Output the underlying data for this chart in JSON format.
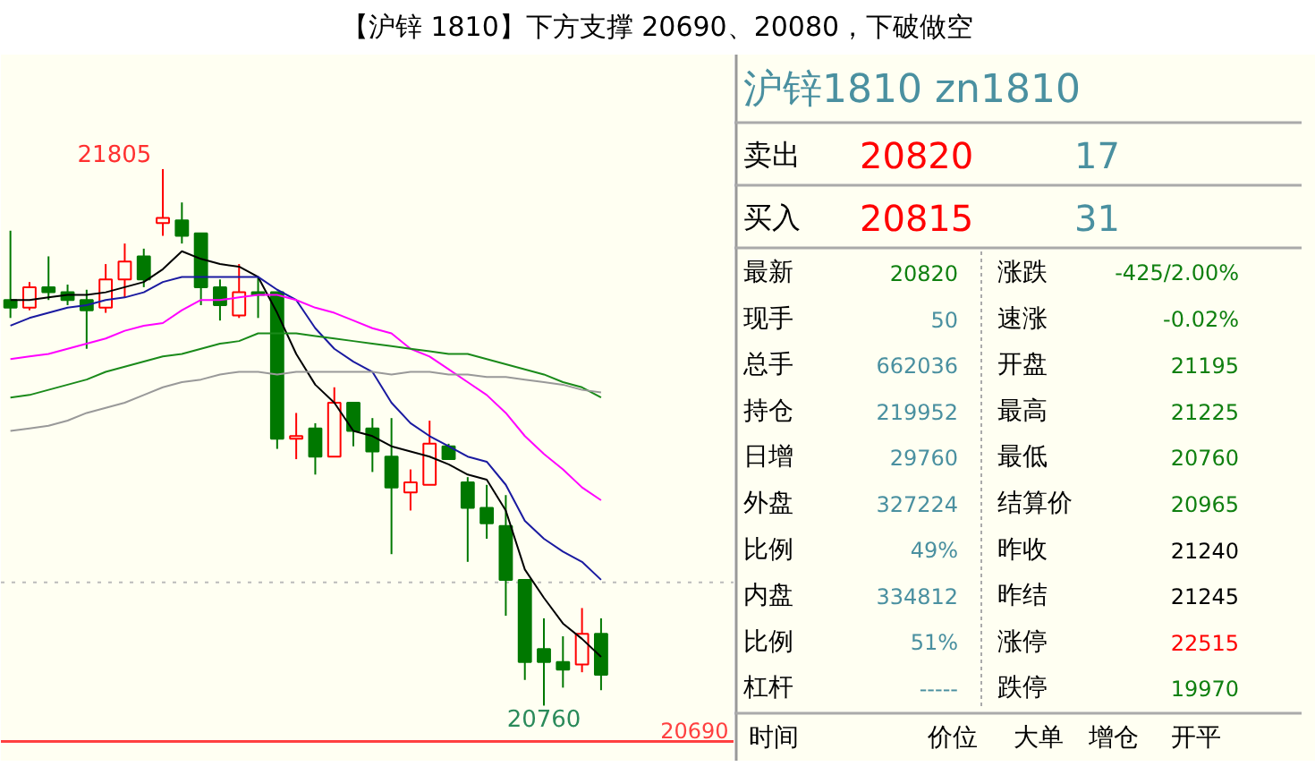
{
  "chart_data": [
    {
      "type": "candlestick",
      "title": "【沪锌 1810】下方支撑 20690、20080，下破做空",
      "categories": [
        null,
        null,
        null,
        null,
        null,
        null,
        null,
        null,
        null,
        null,
        null,
        null,
        null,
        null,
        null,
        null,
        null,
        null,
        null,
        null,
        null,
        null,
        null,
        null,
        null,
        null,
        null,
        null,
        null,
        null,
        null,
        null
      ],
      "ohlc": [
        [
          21550,
          21685,
          21515,
          21535
        ],
        [
          21535,
          21585,
          21530,
          21575
        ],
        [
          21575,
          21635,
          21550,
          21565
        ],
        [
          21565,
          21580,
          21540,
          21550
        ],
        [
          21550,
          21570,
          21455,
          21530
        ],
        [
          21535,
          21620,
          21525,
          21590
        ],
        [
          21590,
          21660,
          21555,
          21625
        ],
        [
          21635,
          21650,
          21575,
          21590
        ],
        [
          21700,
          21805,
          21675,
          21710
        ],
        [
          21705,
          21740,
          21660,
          21675
        ],
        [
          21680,
          21680,
          21540,
          21575
        ],
        [
          21575,
          21590,
          21510,
          21540
        ],
        [
          21520,
          21620,
          21515,
          21565
        ],
        [
          21565,
          21595,
          21515,
          21560
        ],
        [
          21565,
          21565,
          21260,
          21280
        ],
        [
          21280,
          21330,
          21240,
          21285
        ],
        [
          21300,
          21310,
          21210,
          21245
        ],
        [
          21245,
          21380,
          21245,
          21350
        ],
        [
          21350,
          21350,
          21265,
          21295
        ],
        [
          21300,
          21320,
          21215,
          21255
        ],
        [
          21245,
          21320,
          21055,
          21185
        ],
        [
          21175,
          21220,
          21140,
          21195
        ],
        [
          21190,
          21315,
          21190,
          21270
        ],
        [
          21265,
          21270,
          21240,
          21240
        ],
        [
          21195,
          21205,
          21040,
          21145
        ],
        [
          21145,
          21190,
          21085,
          21115
        ],
        [
          21110,
          21170,
          20935,
          21005
        ],
        [
          21005,
          21005,
          20810,
          20845
        ],
        [
          20870,
          20930,
          20760,
          20845
        ],
        [
          20845,
          20895,
          20795,
          20830
        ],
        [
          20840,
          20950,
          20825,
          20900
        ],
        [
          20900,
          20930,
          20790,
          20820
        ]
      ],
      "series": [
        {
          "type": "line",
          "color": "#000000",
          "values": [
            21550,
            21550,
            21555,
            21560,
            21560,
            21565,
            21575,
            21585,
            21610,
            21645,
            21630,
            21620,
            21615,
            21595,
            21525,
            21445,
            21385,
            21350,
            21295,
            21285,
            21265,
            21255,
            21245,
            21230,
            21210,
            21200,
            21140,
            21025,
            20970,
            20920,
            20890,
            20855
          ]
        },
        {
          "type": "line",
          "color": "#1a1aa0",
          "values": [
            21500,
            21515,
            21525,
            21535,
            21540,
            21550,
            21555,
            21565,
            21585,
            21595,
            21595,
            21595,
            21595,
            21595,
            21570,
            21550,
            21495,
            21455,
            21430,
            21410,
            21350,
            21310,
            21285,
            21265,
            21245,
            21235,
            21190,
            21120,
            21085,
            21060,
            21040,
            21005
          ]
        },
        {
          "type": "line",
          "color": "#ff00ff",
          "values": [
            21435,
            21440,
            21445,
            21455,
            21465,
            21475,
            21490,
            21500,
            21505,
            21530,
            21550,
            21550,
            21555,
            21560,
            21560,
            21550,
            21535,
            21525,
            21510,
            21495,
            21485,
            21455,
            21440,
            21415,
            21390,
            21365,
            21330,
            21285,
            21250,
            21220,
            21185,
            21160
          ]
        },
        {
          "type": "line",
          "color": "#1a8a1a",
          "values": [
            21360,
            21365,
            21375,
            21385,
            21395,
            21410,
            21420,
            21430,
            21440,
            21445,
            21455,
            21465,
            21470,
            21485,
            21485,
            21485,
            21480,
            21475,
            21470,
            21465,
            21460,
            21455,
            21450,
            21445,
            21445,
            21435,
            21425,
            21415,
            21405,
            21390,
            21380,
            21360
          ]
        },
        {
          "type": "line",
          "color": "#999999",
          "values": [
            21295,
            21300,
            21305,
            21315,
            21330,
            21340,
            21350,
            21365,
            21380,
            21390,
            21395,
            21405,
            21410,
            21410,
            21405,
            21410,
            21410,
            21410,
            21410,
            21410,
            21405,
            21410,
            21410,
            21405,
            21405,
            21400,
            21400,
            21395,
            21390,
            21385,
            21375,
            21370
          ]
        }
      ],
      "ref_lines": [
        {
          "axis": "y",
          "value": 20690,
          "label": "20690",
          "color": "#ff4040"
        },
        {
          "axis": "y",
          "value": 21000,
          "color": "#bbbbbb",
          "line_style": "dotted"
        }
      ],
      "annotations": [
        "21805",
        "20760"
      ]
    },
    {
      "type": "other",
      "title": "沪锌1810  zn1810",
      "annotations": [
        "卖出",
        "20820",
        "17",
        "买入",
        "20815",
        "31",
        "最新",
        "20820",
        "涨跌",
        "-425/2.00%",
        "现手",
        "50",
        "速涨",
        "-0.02%",
        "总手",
        "662036",
        "开盘",
        "21195",
        "持仓",
        "219952",
        "最高",
        "21225",
        "日增",
        "29760",
        "最低",
        "20760",
        "外盘",
        "327224",
        "结算价",
        "20965",
        "比例",
        "49%",
        "昨收",
        "21240",
        "内盘",
        "334812",
        "昨结",
        "21245",
        "比例",
        "51%",
        "涨停",
        "22515",
        "杠杆",
        "-----",
        "跌停",
        "19970",
        "时间",
        "价位",
        "大单",
        "增仓",
        "开平"
      ]
    }
  ]
}
